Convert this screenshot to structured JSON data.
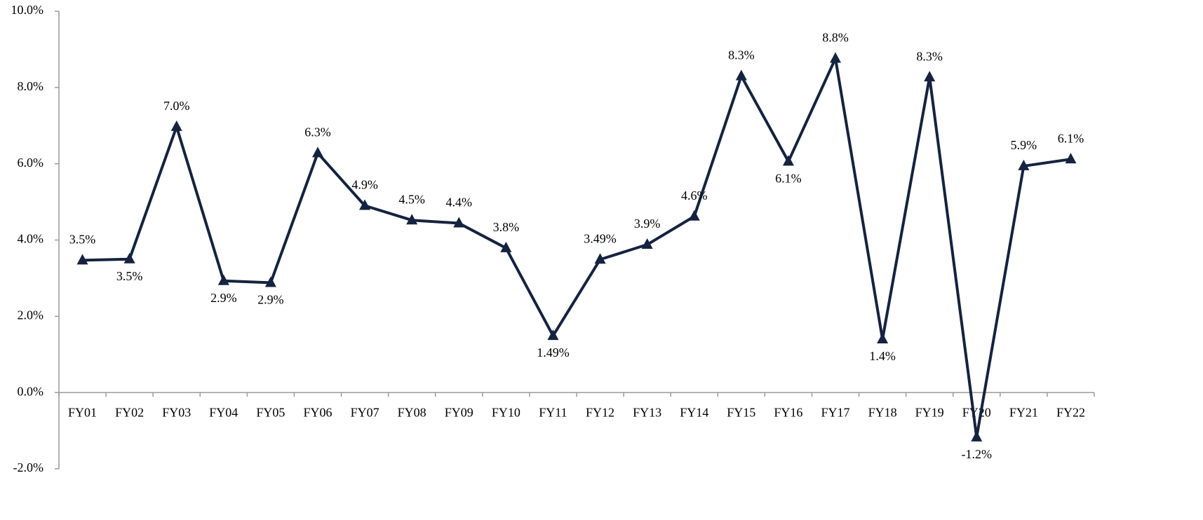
{
  "chart_data": {
    "type": "line",
    "categories": [
      "FY01",
      "FY02",
      "FY03",
      "FY04",
      "FY05",
      "FY06",
      "FY07",
      "FY08",
      "FY09",
      "FY10",
      "FY11",
      "FY12",
      "FY13",
      "FY14",
      "FY15",
      "FY16",
      "FY17",
      "FY18",
      "FY19",
      "FY20",
      "FY21",
      "FY22"
    ],
    "series": [
      {
        "name": null,
        "color": "#14233f",
        "values": [
          3.47,
          3.5,
          6.97,
          2.93,
          2.88,
          6.28,
          4.9,
          4.52,
          4.44,
          3.79,
          1.49,
          3.49,
          3.88,
          4.62,
          8.3,
          6.06,
          8.76,
          1.4,
          8.27,
          -1.17,
          5.94,
          6.12
        ],
        "value_labels": [
          "3.5%",
          "3.5%",
          "7.0%",
          "2.9%",
          "2.9%",
          "6.3%",
          "4.9%",
          "4.5%",
          "4.4%",
          "3.8%",
          "1.49%",
          "3.49%",
          "3.9%",
          "4.6%",
          "8.3%",
          "6.1%",
          "8.8%",
          "1.4%",
          "8.3%",
          "-1.2%",
          "5.9%",
          "6.1%"
        ]
      }
    ],
    "ylim": [
      -2,
      10
    ],
    "yticks": [
      {
        "value": -2,
        "label": "-2.0%"
      },
      {
        "value": 0,
        "label": "0.0%"
      },
      {
        "value": 2,
        "label": "2.0%"
      },
      {
        "value": 4,
        "label": "4.0%"
      },
      {
        "value": 6,
        "label": "6.0%"
      },
      {
        "value": 8,
        "label": "8.0%"
      },
      {
        "value": 10,
        "label": "10.0%"
      }
    ],
    "grid": false
  }
}
